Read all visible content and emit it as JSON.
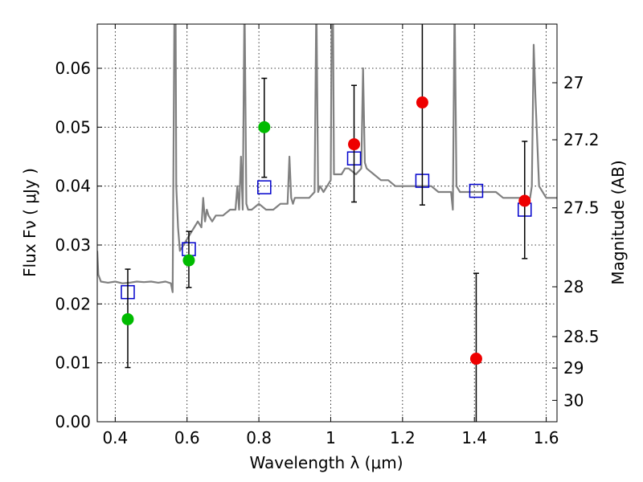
{
  "chart_data": {
    "type": "scatter",
    "xlabel": "Wavelength  λ (μm)",
    "ylabel": "Flux  Fν  ( μJy )",
    "y2label": "Magnitude (AB)",
    "xlim": [
      0.35,
      1.63
    ],
    "ylim": [
      0.0,
      0.0675
    ],
    "xticks": [
      "0.4",
      "0.6",
      "0.8",
      "1",
      "1.2",
      "1.4",
      "1.6"
    ],
    "yticks": [
      "0.00",
      "0.01",
      "0.02",
      "0.03",
      "0.04",
      "0.05",
      "0.06"
    ],
    "magnitude_ticks": [
      {
        "label": "27",
        "mag": 27.0
      },
      {
        "label": "27.2",
        "mag": 27.2
      },
      {
        "label": "27.5",
        "mag": 27.5
      },
      {
        "label": "28",
        "mag": 28.0
      },
      {
        "label": "28.5",
        "mag": 28.5
      },
      {
        "label": "29",
        "mag": 29.0
      },
      {
        "label": "30",
        "mag": 30.0
      }
    ],
    "grid": true,
    "colors": {
      "model": "#808080",
      "model_photometry": "#0000cc",
      "green_points": "#00bb00",
      "red_points": "#ee0000",
      "errorbar": "#000000"
    },
    "series": [
      {
        "name": "Model SED",
        "type": "line",
        "x": [
          0.35,
          0.353,
          0.36,
          0.38,
          0.4,
          0.42,
          0.44,
          0.46,
          0.48,
          0.5,
          0.52,
          0.54,
          0.555,
          0.56,
          0.565,
          0.568,
          0.57,
          0.575,
          0.58,
          0.59,
          0.6,
          0.61,
          0.62,
          0.63,
          0.64,
          0.645,
          0.65,
          0.655,
          0.66,
          0.67,
          0.68,
          0.69,
          0.7,
          0.72,
          0.735,
          0.74,
          0.745,
          0.75,
          0.755,
          0.76,
          0.765,
          0.77,
          0.78,
          0.8,
          0.82,
          0.84,
          0.86,
          0.88,
          0.885,
          0.89,
          0.895,
          0.9,
          0.92,
          0.94,
          0.955,
          0.96,
          0.965,
          0.97,
          0.98,
          0.99,
          1.0,
          1.003,
          1.006,
          1.009,
          1.012,
          1.02,
          1.03,
          1.04,
          1.05,
          1.07,
          1.085,
          1.09,
          1.095,
          1.1,
          1.12,
          1.14,
          1.16,
          1.18,
          1.2,
          1.22,
          1.24,
          1.26,
          1.28,
          1.3,
          1.32,
          1.33,
          1.335,
          1.34,
          1.345,
          1.35,
          1.36,
          1.38,
          1.4,
          1.42,
          1.44,
          1.46,
          1.48,
          1.5,
          1.52,
          1.54,
          1.555,
          1.56,
          1.565,
          1.57,
          1.58,
          1.6,
          1.62,
          1.63
        ],
        "y": [
          0.029,
          0.025,
          0.0238,
          0.0236,
          0.0238,
          0.0235,
          0.0236,
          0.0238,
          0.0237,
          0.0238,
          0.0236,
          0.0238,
          0.0235,
          0.022,
          0.072,
          0.072,
          0.04,
          0.033,
          0.029,
          0.03,
          0.031,
          0.032,
          0.033,
          0.034,
          0.033,
          0.038,
          0.034,
          0.036,
          0.035,
          0.034,
          0.035,
          0.035,
          0.035,
          0.036,
          0.036,
          0.04,
          0.036,
          0.045,
          0.036,
          0.072,
          0.037,
          0.036,
          0.036,
          0.037,
          0.036,
          0.036,
          0.037,
          0.037,
          0.045,
          0.038,
          0.037,
          0.038,
          0.038,
          0.038,
          0.039,
          0.072,
          0.039,
          0.04,
          0.039,
          0.04,
          0.041,
          0.072,
          0.072,
          0.042,
          0.042,
          0.042,
          0.042,
          0.043,
          0.043,
          0.042,
          0.043,
          0.06,
          0.044,
          0.043,
          0.042,
          0.041,
          0.041,
          0.04,
          0.04,
          0.04,
          0.04,
          0.04,
          0.04,
          0.039,
          0.039,
          0.039,
          0.039,
          0.036,
          0.072,
          0.04,
          0.039,
          0.039,
          0.039,
          0.039,
          0.039,
          0.039,
          0.038,
          0.038,
          0.038,
          0.038,
          0.038,
          0.04,
          0.064,
          0.055,
          0.04,
          0.038,
          0.038,
          0.038
        ]
      },
      {
        "name": "Model photometry",
        "type": "scatter",
        "marker": "open-square",
        "x": [
          0.435,
          0.605,
          0.815,
          1.065,
          1.255,
          1.405,
          1.54
        ],
        "y": [
          0.022,
          0.0293,
          0.0398,
          0.0447,
          0.0409,
          0.0392,
          0.036
        ]
      },
      {
        "name": "Observed (green)",
        "type": "scatter",
        "marker": "filled-circle",
        "x": [
          0.435,
          0.605,
          0.815
        ],
        "y": [
          0.0174,
          0.0274,
          0.05
        ],
        "err_low": [
          0.0082,
          0.0046,
          0.0085
        ],
        "err_high": [
          0.0085,
          0.0049,
          0.0083
        ]
      },
      {
        "name": "Observed (red)",
        "type": "scatter",
        "marker": "filled-circle",
        "x": [
          1.065,
          1.255,
          1.405,
          1.54
        ],
        "y": [
          0.0471,
          0.0542,
          0.0107,
          0.0375
        ],
        "err_low": [
          0.0098,
          0.0174,
          0.011,
          0.0098
        ],
        "err_high": [
          0.01,
          0.016,
          0.0145,
          0.0101
        ]
      }
    ]
  }
}
